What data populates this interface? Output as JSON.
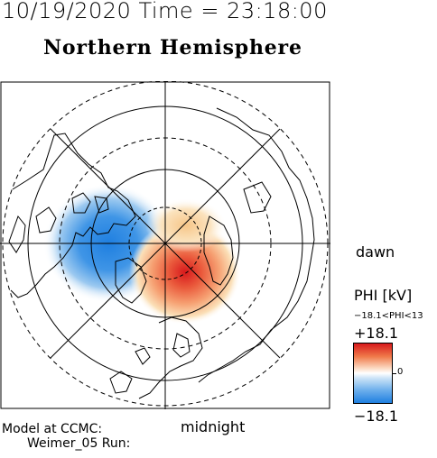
{
  "header": {
    "datetime": "10/19/2020 Time = 23:18:00",
    "hemisphere": "Northern Hemisphere"
  },
  "labels": {
    "dawn": "dawn",
    "midnight": "midnight"
  },
  "colorbar": {
    "title": "PHI [kV]",
    "range": "−18.1<PHI<13",
    "max_label": "+18.1",
    "min_label": "−18.1",
    "zero_label": "0",
    "max_color": "#d7191c",
    "zero_color": "#ffffff",
    "min_color": "#1f7fe0"
  },
  "footer": {
    "model": "Model at CCMC:",
    "run": "Weimer_05 Run:"
  }
}
